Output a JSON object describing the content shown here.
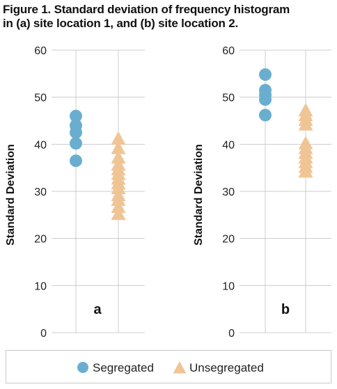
{
  "figure": {
    "title_line1": "Figure 1. Standard deviation of frequency histogram",
    "title_line2": "in (a) site location 1, and (b) site location 2."
  },
  "colors": {
    "segregated": "#6aaecf",
    "unsegregated": "#f0c596",
    "grid": "#cccccc"
  },
  "legend": {
    "items": [
      {
        "label": "Segregated",
        "shape": "circle"
      },
      {
        "label": "Unsegregated",
        "shape": "triangle"
      }
    ]
  },
  "chart_data": [
    {
      "type": "scatter",
      "panel_label": "a",
      "ylabel": "Standard Deviation",
      "ylim": [
        0,
        60
      ],
      "yticks": [
        0,
        10,
        20,
        30,
        40,
        50,
        60
      ],
      "grid": true,
      "series": [
        {
          "name": "Segregated",
          "marker": "circle",
          "values": [
            46.0,
            44.0,
            42.5,
            40.2,
            36.5
          ]
        },
        {
          "name": "Unsegregated",
          "marker": "triangle",
          "values": [
            41.0,
            39.0,
            37.0,
            35.5,
            34.5,
            33.5,
            32.5,
            31.5,
            30.5,
            29.0,
            28.0,
            26.5,
            25.0
          ]
        }
      ]
    },
    {
      "type": "scatter",
      "panel_label": "b",
      "ylabel": "Standard Deviation",
      "ylim": [
        0,
        60
      ],
      "yticks": [
        0,
        10,
        20,
        30,
        40,
        50,
        60
      ],
      "grid": true,
      "series": [
        {
          "name": "Segregated",
          "marker": "circle",
          "values": [
            54.8,
            51.5,
            50.5,
            49.5,
            46.2
          ]
        },
        {
          "name": "Unsegregated",
          "marker": "triangle",
          "values": [
            47.0,
            46.0,
            45.0,
            44.0,
            40.0,
            39.0,
            38.0,
            37.0,
            36.0,
            35.0,
            34.0
          ]
        }
      ]
    }
  ]
}
